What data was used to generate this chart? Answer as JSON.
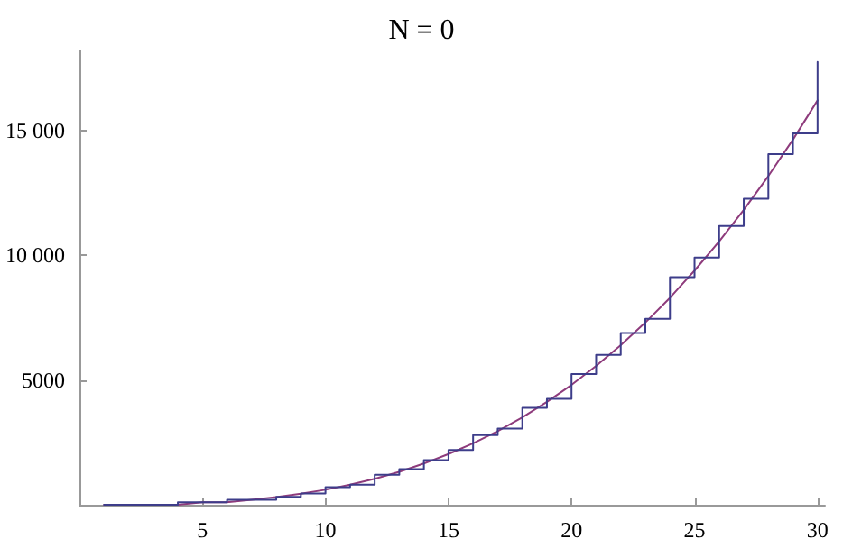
{
  "chart_data": {
    "type": "line",
    "title": "N = 0",
    "xlim": [
      0,
      30.3
    ],
    "ylim": [
      0,
      18200
    ],
    "xticks": [
      5,
      10,
      15,
      20,
      25,
      30
    ],
    "yticks": [
      5000,
      {
        "value": 10000,
        "label": "10 000"
      },
      {
        "value": 15000,
        "label": "15 000"
      }
    ],
    "grid": false,
    "marker": "none",
    "line_style": "solid",
    "series": [
      {
        "type": "step",
        "color": "#3d3d8a",
        "x": [
          1,
          2,
          3,
          4,
          5,
          6,
          7,
          8,
          9,
          10,
          11,
          12,
          13,
          14,
          15,
          16,
          17,
          18,
          19,
          20,
          21,
          22,
          23,
          24,
          25,
          26,
          27,
          28,
          29,
          30
        ],
        "values": [
          0,
          0,
          0,
          100,
          100,
          200,
          200,
          320,
          450,
          700,
          800,
          1200,
          1430,
          1790,
          2190,
          2790,
          3050,
          3880,
          4240,
          5240,
          6000,
          6880,
          7450,
          9120,
          9900,
          11170,
          12260,
          14050,
          14880,
          17740
        ]
      },
      {
        "color": "#8e3b7c",
        "x": [
          1,
          2,
          3,
          4,
          5,
          6,
          7,
          8,
          9,
          10,
          11,
          12,
          13,
          14,
          15,
          16,
          17,
          18,
          19,
          20,
          21,
          22,
          23,
          24,
          25,
          26,
          27,
          28,
          29,
          30
        ],
        "values": [
          0,
          0,
          0,
          0,
          100,
          100,
          200,
          310,
          440,
          600,
          800,
          1040,
          1320,
          1650,
          2030,
          2460,
          2950,
          3500,
          4120,
          4800,
          5560,
          6390,
          7300,
          8290,
          9380,
          10550,
          11810,
          13170,
          14630,
          16200
        ]
      }
    ]
  }
}
